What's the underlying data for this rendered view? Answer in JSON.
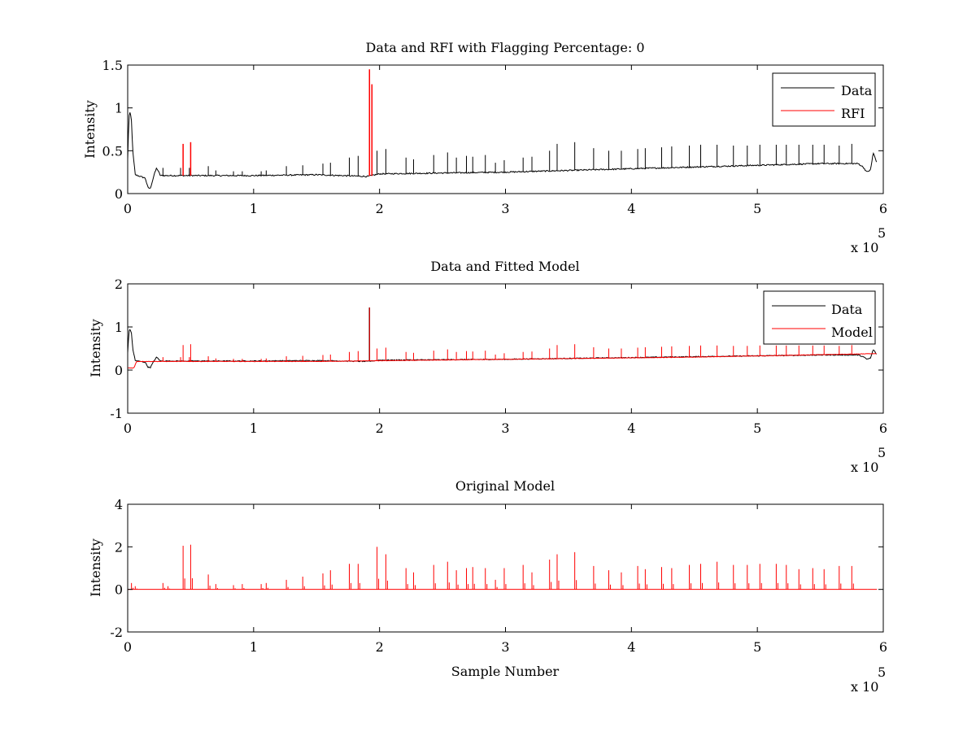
{
  "chart_data": [
    {
      "type": "line",
      "title": "Data and RFI with Flagging Percentage: 0",
      "xlabel": "",
      "ylabel": "Intensity",
      "xlim": [
        0,
        600000
      ],
      "ylim": [
        0,
        1.5
      ],
      "xticks": [
        0,
        1,
        2,
        3,
        4,
        5,
        6
      ],
      "yticks": [
        0,
        0.5,
        1,
        1.5
      ],
      "x_multiplier": "x 10",
      "x_exponent": "5",
      "legend_position": "top-right",
      "grid": false,
      "baseline": [
        [
          0,
          0.4
        ],
        [
          1000,
          0.9
        ],
        [
          2000,
          0.95
        ],
        [
          3000,
          0.85
        ],
        [
          4000,
          0.5
        ],
        [
          6000,
          0.22
        ],
        [
          10000,
          0.2
        ],
        [
          14000,
          0.18
        ],
        [
          16000,
          0.07
        ],
        [
          18000,
          0.06
        ],
        [
          21000,
          0.22
        ],
        [
          23000,
          0.3
        ],
        [
          26000,
          0.21
        ],
        [
          50000,
          0.21
        ],
        [
          100000,
          0.21
        ],
        [
          150000,
          0.22
        ],
        [
          190000,
          0.2
        ],
        [
          200000,
          0.23
        ],
        [
          250000,
          0.24
        ],
        [
          300000,
          0.25
        ],
        [
          350000,
          0.27
        ],
        [
          400000,
          0.29
        ],
        [
          450000,
          0.31
        ],
        [
          500000,
          0.33
        ],
        [
          550000,
          0.35
        ],
        [
          580000,
          0.35
        ],
        [
          584000,
          0.31
        ],
        [
          587000,
          0.25
        ],
        [
          590000,
          0.28
        ],
        [
          592000,
          0.48
        ],
        [
          595000,
          0.35
        ]
      ],
      "spikes": [
        [
          28000,
          0.3
        ],
        [
          42000,
          0.3
        ],
        [
          49000,
          0.3
        ],
        [
          64000,
          0.32
        ],
        [
          70000,
          0.27
        ],
        [
          84000,
          0.26
        ],
        [
          91000,
          0.26
        ],
        [
          106000,
          0.26
        ],
        [
          110000,
          0.27
        ],
        [
          126000,
          0.32
        ],
        [
          139000,
          0.33
        ],
        [
          155000,
          0.35
        ],
        [
          161000,
          0.36
        ],
        [
          176000,
          0.42
        ],
        [
          183000,
          0.44
        ],
        [
          198000,
          0.5
        ],
        [
          205000,
          0.52
        ],
        [
          221000,
          0.42
        ],
        [
          227000,
          0.4
        ],
        [
          243000,
          0.45
        ],
        [
          254000,
          0.48
        ],
        [
          261000,
          0.42
        ],
        [
          269000,
          0.44
        ],
        [
          274000,
          0.43
        ],
        [
          284000,
          0.45
        ],
        [
          292000,
          0.36
        ],
        [
          299000,
          0.39
        ],
        [
          314000,
          0.42
        ],
        [
          321000,
          0.43
        ],
        [
          335000,
          0.5
        ],
        [
          341000,
          0.58
        ],
        [
          355000,
          0.6
        ],
        [
          370000,
          0.53
        ],
        [
          382000,
          0.5
        ],
        [
          392000,
          0.5
        ],
        [
          405000,
          0.52
        ],
        [
          411000,
          0.53
        ],
        [
          424000,
          0.54
        ],
        [
          432000,
          0.55
        ],
        [
          446000,
          0.56
        ],
        [
          455000,
          0.57
        ],
        [
          468000,
          0.57
        ],
        [
          481000,
          0.56
        ],
        [
          492000,
          0.56
        ],
        [
          502000,
          0.57
        ],
        [
          515000,
          0.57
        ],
        [
          523000,
          0.57
        ],
        [
          533000,
          0.57
        ],
        [
          544000,
          0.57
        ],
        [
          553000,
          0.57
        ],
        [
          565000,
          0.56
        ],
        [
          575000,
          0.58
        ]
      ],
      "series": [
        {
          "name": "Data",
          "color": "#000000"
        },
        {
          "name": "RFI",
          "color": "#ff0000",
          "spikes": [
            [
              44000,
              0.58
            ],
            [
              50000,
              0.6
            ],
            [
              192000,
              1.45
            ]
          ]
        }
      ]
    },
    {
      "type": "line",
      "title": "Data and Fitted Model",
      "xlabel": "",
      "ylabel": "Intensity",
      "xlim": [
        0,
        600000
      ],
      "ylim": [
        -1,
        2
      ],
      "xticks": [
        0,
        1,
        2,
        3,
        4,
        5,
        6
      ],
      "yticks": [
        -1,
        0,
        1,
        2
      ],
      "x_multiplier": "x 10",
      "x_exponent": "5",
      "legend_position": "top-right",
      "grid": false,
      "series": [
        {
          "name": "Data",
          "color": "#000000",
          "extra_spikes": [
            [
              192000,
              1.45
            ]
          ]
        },
        {
          "name": "Model",
          "color": "#ff0000",
          "baseline": [
            [
              0,
              0.05
            ],
            [
              5000,
              0.05
            ],
            [
              7000,
              0.2
            ],
            [
              50000,
              0.2
            ],
            [
              150000,
              0.2
            ],
            [
              300000,
              0.25
            ],
            [
              450000,
              0.3
            ],
            [
              590000,
              0.38
            ],
            [
              595000,
              0.38
            ]
          ]
        }
      ]
    },
    {
      "type": "line",
      "title": "Original Model",
      "xlabel": "Sample Number",
      "ylabel": "Intensity",
      "xlim": [
        0,
        600000
      ],
      "ylim": [
        -2,
        4
      ],
      "xticks": [
        0,
        1,
        2,
        3,
        4,
        5,
        6
      ],
      "yticks": [
        -2,
        0,
        2,
        4
      ],
      "x_multiplier": "x 10",
      "x_exponent": "5",
      "grid": false,
      "series": [
        {
          "name": "",
          "color": "#ff0000",
          "spikes": [
            [
              3000,
              0.3
            ],
            [
              6000,
              0.15
            ],
            [
              28000,
              0.3
            ],
            [
              32000,
              0.15
            ],
            [
              44000,
              2.05
            ],
            [
              50000,
              2.1
            ],
            [
              64000,
              0.7
            ],
            [
              70000,
              0.25
            ],
            [
              84000,
              0.2
            ],
            [
              91000,
              0.25
            ],
            [
              106000,
              0.25
            ],
            [
              110000,
              0.3
            ],
            [
              126000,
              0.45
            ],
            [
              139000,
              0.6
            ],
            [
              155000,
              0.75
            ],
            [
              161000,
              0.9
            ],
            [
              176000,
              1.2
            ],
            [
              183000,
              1.2
            ],
            [
              198000,
              2.0
            ],
            [
              205000,
              1.65
            ],
            [
              221000,
              1.0
            ],
            [
              227000,
              0.8
            ],
            [
              243000,
              1.15
            ],
            [
              254000,
              1.3
            ],
            [
              261000,
              0.9
            ],
            [
              269000,
              1.0
            ],
            [
              274000,
              1.05
            ],
            [
              284000,
              1.0
            ],
            [
              292000,
              0.45
            ],
            [
              299000,
              1.0
            ],
            [
              314000,
              1.15
            ],
            [
              321000,
              0.8
            ],
            [
              335000,
              1.4
            ],
            [
              341000,
              1.65
            ],
            [
              355000,
              1.75
            ],
            [
              370000,
              1.1
            ],
            [
              382000,
              0.9
            ],
            [
              392000,
              0.8
            ],
            [
              405000,
              1.1
            ],
            [
              411000,
              0.95
            ],
            [
              424000,
              1.05
            ],
            [
              432000,
              1.0
            ],
            [
              446000,
              1.15
            ],
            [
              455000,
              1.2
            ],
            [
              468000,
              1.3
            ],
            [
              481000,
              1.15
            ],
            [
              492000,
              1.15
            ],
            [
              502000,
              1.2
            ],
            [
              515000,
              1.2
            ],
            [
              523000,
              1.15
            ],
            [
              533000,
              0.95
            ],
            [
              544000,
              1.0
            ],
            [
              553000,
              0.95
            ],
            [
              565000,
              1.1
            ],
            [
              575000,
              1.1
            ]
          ]
        }
      ]
    }
  ]
}
